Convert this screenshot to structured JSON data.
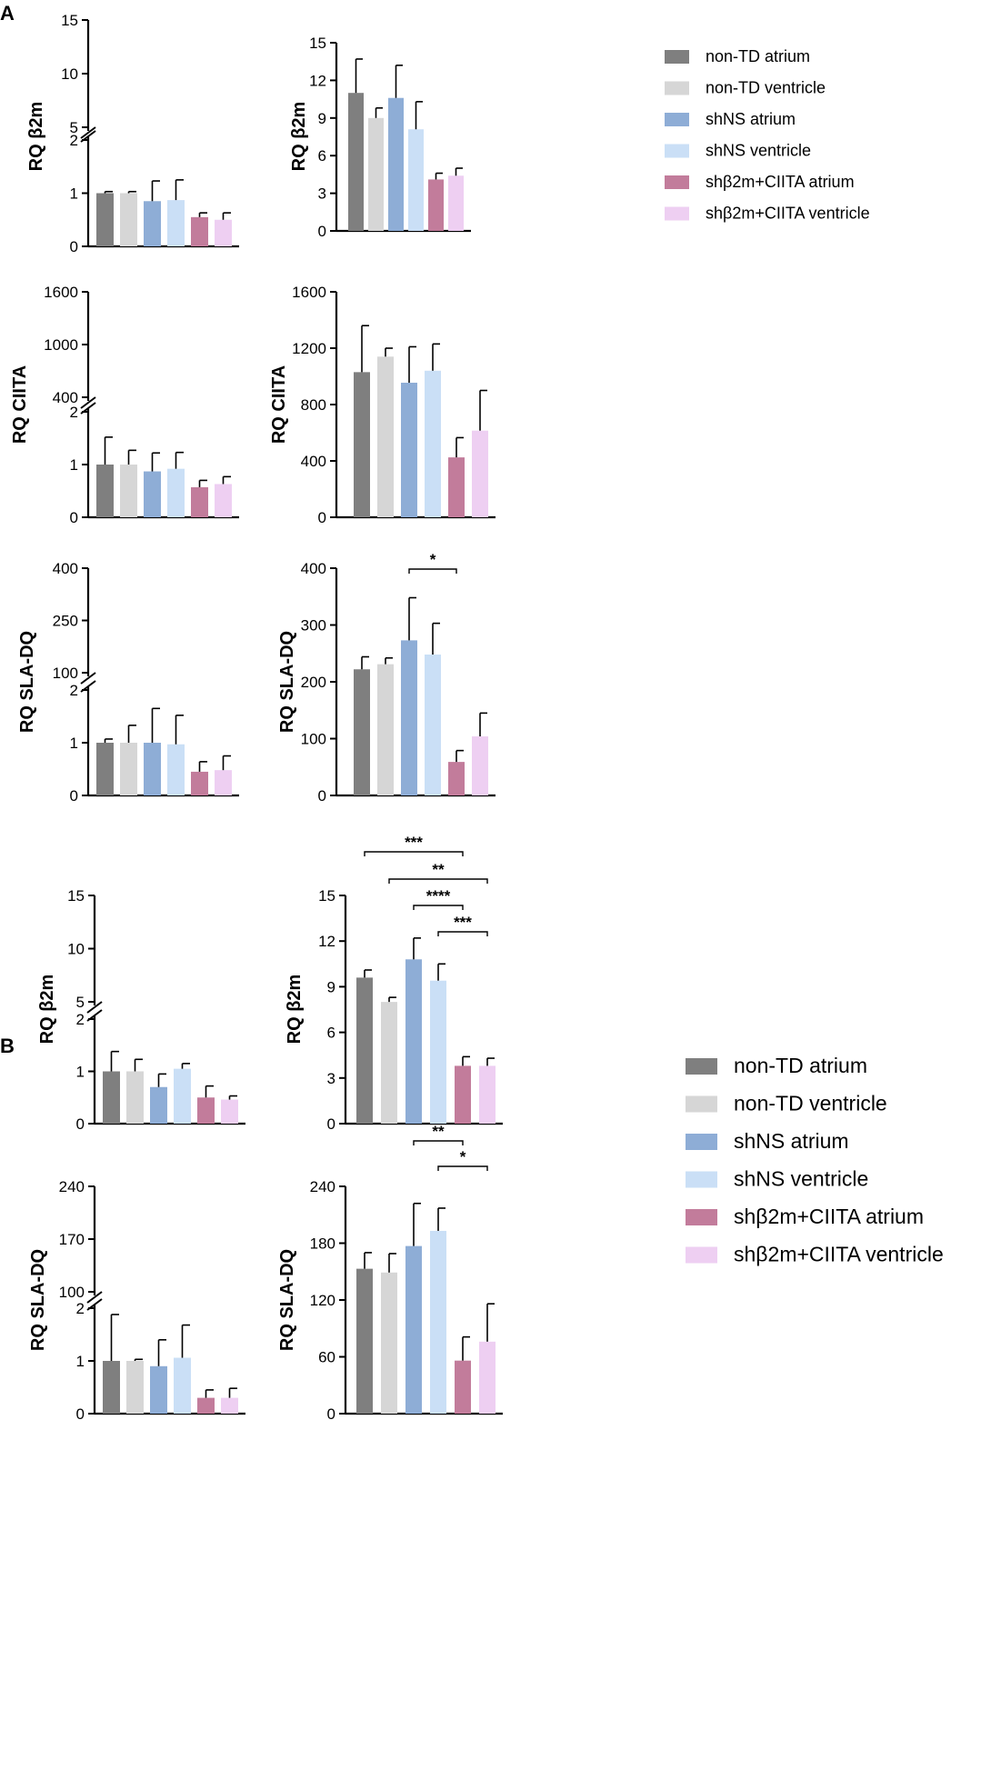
{
  "colors": {
    "non-TD atrium": "#7f7f7f",
    "non-TD ventricle": "#d6d6d6",
    "shNS atrium": "#8eadd6",
    "shNS ventricle": "#cadff6",
    "shβ2m+CIITA atrium": "#c27c9b",
    "shβ2m+CIITA ventricle": "#eecff2"
  },
  "chart_data": [
    {
      "type": "bar",
      "panel": "A",
      "layout": "broken-axis",
      "ylabel": "RQ β2m",
      "categories": [
        "non-TD atrium",
        "non-TD ventricle",
        "shNS atrium",
        "shNS ventricle",
        "shβ2m+CIITA atrium",
        "shβ2m+CIITA ventricle"
      ],
      "values": [
        1.0,
        1.0,
        0.85,
        0.87,
        0.55,
        0.5
      ],
      "errors": [
        0.03,
        0.03,
        0.38,
        0.38,
        0.08,
        0.13
      ],
      "ylim_lower": [
        0,
        2
      ],
      "lower_ticks": [
        "0",
        "1",
        "2"
      ],
      "upper_ticks": [
        "5",
        "10",
        "15"
      ]
    },
    {
      "type": "bar",
      "panel": "A",
      "ylabel": "RQ β2m",
      "categories": [
        "non-TD atrium",
        "non-TD ventricle",
        "shNS atrium",
        "shNS ventricle",
        "shβ2m+CIITA atrium",
        "shβ2m+CIITA ventricle"
      ],
      "values": [
        11.0,
        9.0,
        10.6,
        8.1,
        4.1,
        4.4
      ],
      "errors": [
        2.7,
        0.8,
        2.6,
        2.2,
        0.5,
        0.6
      ],
      "ylim": [
        0,
        15
      ],
      "ticks": [
        "0",
        "3",
        "6",
        "9",
        "12",
        "15"
      ],
      "legend": [
        "non-TD atrium",
        "non-TD ventricle",
        "shNS atrium",
        "shNS ventricle",
        "shβ2m+CIITA atrium",
        "shβ2m+CIITA ventricle"
      ]
    },
    {
      "type": "bar",
      "panel": "A",
      "layout": "broken-axis",
      "ylabel": "RQ CIITA",
      "categories": [
        "non-TD atrium",
        "non-TD ventricle",
        "shNS atrium",
        "shNS ventricle",
        "shβ2m+CIITA atrium",
        "shβ2m+CIITA ventricle"
      ],
      "values": [
        1.0,
        1.0,
        0.87,
        0.92,
        0.57,
        0.63
      ],
      "errors": [
        0.52,
        0.27,
        0.35,
        0.31,
        0.13,
        0.14
      ],
      "ylim_lower": [
        0,
        2
      ],
      "lower_ticks": [
        "0",
        "1",
        "2"
      ],
      "upper_ticks": [
        "400",
        "1000",
        "1600"
      ]
    },
    {
      "type": "bar",
      "panel": "A",
      "ylabel": "RQ CIITA",
      "categories": [
        "non-TD atrium",
        "non-TD ventricle",
        "shNS atrium",
        "shNS ventricle",
        "shβ2m+CIITA atrium",
        "shβ2m+CIITA ventricle"
      ],
      "values": [
        1030,
        1140,
        955,
        1040,
        425,
        615
      ],
      "errors": [
        330,
        60,
        255,
        190,
        140,
        285
      ],
      "ylim": [
        0,
        1600
      ],
      "ticks": [
        "0",
        "400",
        "800",
        "1200",
        "1600"
      ]
    },
    {
      "type": "bar",
      "panel": "A",
      "layout": "broken-axis",
      "ylabel": "RQ SLA-DQ",
      "categories": [
        "non-TD atrium",
        "non-TD ventricle",
        "shNS atrium",
        "shNS ventricle",
        "shβ2m+CIITA atrium",
        "shβ2m+CIITA ventricle"
      ],
      "values": [
        1.0,
        1.0,
        1.0,
        0.97,
        0.45,
        0.48
      ],
      "errors": [
        0.07,
        0.33,
        0.65,
        0.55,
        0.19,
        0.27
      ],
      "ylim_lower": [
        0,
        2
      ],
      "lower_ticks": [
        "0",
        "1",
        "2"
      ],
      "upper_ticks": [
        "100",
        "250",
        "400"
      ]
    },
    {
      "type": "bar",
      "panel": "A",
      "ylabel": "RQ SLA-DQ",
      "categories": [
        "non-TD atrium",
        "non-TD ventricle",
        "shNS atrium",
        "shNS ventricle",
        "shβ2m+CIITA atrium",
        "shβ2m+CIITA ventricle"
      ],
      "values": [
        222,
        231,
        273,
        248,
        59,
        104
      ],
      "errors": [
        22,
        11,
        75,
        55,
        20,
        41
      ],
      "ylim": [
        0,
        400
      ],
      "ticks": [
        "0",
        "100",
        "200",
        "300",
        "400"
      ],
      "significance": [
        {
          "from": 2,
          "to": 4,
          "label": "*"
        }
      ]
    },
    {
      "type": "bar",
      "panel": "B",
      "layout": "broken-axis",
      "ylabel": "RQ β2m",
      "categories": [
        "non-TD atrium",
        "non-TD ventricle",
        "shNS atrium",
        "shNS ventricle",
        "shβ2m+CIITA atrium",
        "shβ2m+CIITA ventricle"
      ],
      "values": [
        1.0,
        1.0,
        0.7,
        1.05,
        0.5,
        0.46
      ],
      "errors": [
        0.38,
        0.23,
        0.25,
        0.1,
        0.22,
        0.07
      ],
      "ylim_lower": [
        0,
        2
      ],
      "lower_ticks": [
        "0",
        "1",
        "2"
      ],
      "upper_ticks": [
        "5",
        "10",
        "15"
      ]
    },
    {
      "type": "bar",
      "panel": "B",
      "ylabel": "RQ β2m",
      "categories": [
        "non-TD atrium",
        "non-TD ventricle",
        "shNS atrium",
        "shNS ventricle",
        "shβ2m+CIITA atrium",
        "shβ2m+CIITA ventricle"
      ],
      "values": [
        9.6,
        8.0,
        10.8,
        9.4,
        3.8,
        3.8
      ],
      "errors": [
        0.5,
        0.3,
        1.4,
        1.1,
        0.6,
        0.5
      ],
      "ylim": [
        0,
        15
      ],
      "ticks": [
        "0",
        "3",
        "6",
        "9",
        "12",
        "15"
      ],
      "significance": [
        {
          "from": 0,
          "to": 4,
          "label": "***"
        },
        {
          "from": 1,
          "to": 5,
          "label": "**"
        },
        {
          "from": 2,
          "to": 4,
          "label": "****"
        },
        {
          "from": 3,
          "to": 5,
          "label": "***"
        }
      ],
      "legend": [
        "non-TD atrium",
        "non-TD ventricle",
        "shNS atrium",
        "shNS ventricle",
        "shβ2m+CIITA atrium",
        "shβ2m+CIITA ventricle"
      ]
    },
    {
      "type": "bar",
      "panel": "B",
      "layout": "broken-axis",
      "ylabel": "RQ SLA-DQ",
      "categories": [
        "non-TD atrium",
        "non-TD ventricle",
        "shNS atrium",
        "shNS ventricle",
        "shβ2m+CIITA atrium",
        "shβ2m+CIITA ventricle"
      ],
      "values": [
        1.0,
        1.0,
        0.9,
        1.06,
        0.3,
        0.3
      ],
      "errors": [
        0.88,
        0.03,
        0.5,
        0.62,
        0.15,
        0.18
      ],
      "ylim_lower": [
        0,
        2
      ],
      "lower_ticks": [
        "0",
        "1",
        "2"
      ],
      "upper_ticks": [
        "100",
        "170",
        "240"
      ]
    },
    {
      "type": "bar",
      "panel": "B",
      "ylabel": "RQ SLA-DQ",
      "categories": [
        "non-TD atrium",
        "non-TD ventricle",
        "shNS atrium",
        "shNS ventricle",
        "shβ2m+CIITA atrium",
        "shβ2m+CIITA ventricle"
      ],
      "values": [
        153,
        149,
        177,
        193,
        56,
        76
      ],
      "errors": [
        17,
        20,
        45,
        24,
        25,
        40
      ],
      "ylim": [
        0,
        240
      ],
      "ticks": [
        "0",
        "60",
        "120",
        "180",
        "240"
      ],
      "significance": [
        {
          "from": 2,
          "to": 4,
          "label": "**"
        },
        {
          "from": 3,
          "to": 5,
          "label": "*"
        }
      ]
    }
  ],
  "panels": [
    "A",
    "B"
  ]
}
